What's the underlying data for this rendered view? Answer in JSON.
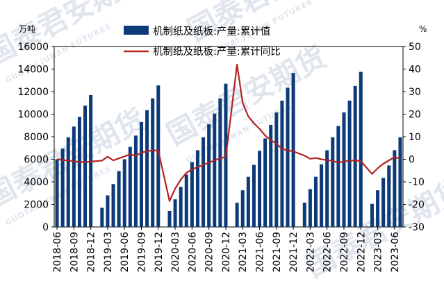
{
  "chart_data": {
    "type": "bar+line",
    "left_unit": "万吨",
    "right_unit": "%",
    "left_ylim": [
      0,
      16000
    ],
    "left_ticks": [
      "0",
      "2000",
      "4000",
      "6000",
      "8000",
      "10000",
      "12000",
      "14000",
      "16000"
    ],
    "right_ylim": [
      -30,
      50
    ],
    "right_ticks": [
      "-30",
      "-20",
      "-10",
      "0",
      "10",
      "20",
      "30",
      "40",
      "50"
    ],
    "x_tick_labels": [
      "2018-06",
      "2018-09",
      "2018-12",
      "2019-03",
      "2019-06",
      "2019-09",
      "2019-12",
      "2020-03",
      "2020-06",
      "2020-09",
      "2020-12",
      "2021-03",
      "2021-06",
      "2021-09",
      "2021-12",
      "2022-03",
      "2022-06",
      "2022-09",
      "2022-12",
      "2023-03",
      "2023-06"
    ],
    "x": [
      "2018-06",
      "2018-07",
      "2018-08",
      "2018-09",
      "2018-10",
      "2018-11",
      "2018-12",
      "2019-01",
      "2019-02",
      "2019-03",
      "2019-04",
      "2019-05",
      "2019-06",
      "2019-07",
      "2019-08",
      "2019-09",
      "2019-10",
      "2019-11",
      "2019-12",
      "2020-01",
      "2020-02",
      "2020-03",
      "2020-04",
      "2020-05",
      "2020-06",
      "2020-07",
      "2020-08",
      "2020-09",
      "2020-10",
      "2020-11",
      "2020-12",
      "2021-01",
      "2021-02",
      "2021-03",
      "2021-04",
      "2021-05",
      "2021-06",
      "2021-07",
      "2021-08",
      "2021-09",
      "2021-10",
      "2021-11",
      "2021-12",
      "2022-01",
      "2022-02",
      "2022-03",
      "2022-04",
      "2022-05",
      "2022-06",
      "2022-07",
      "2022-08",
      "2022-09",
      "2022-10",
      "2022-11",
      "2022-12",
      "2023-01",
      "2023-02",
      "2023-03",
      "2023-04",
      "2023-05",
      "2023-06",
      "2023-07"
    ],
    "series": [
      {
        "name": "机制纸及纸板:产量:累计值",
        "type": "bar",
        "axis": "left",
        "color": "#0d3a78",
        "values": [
          6000,
          6950,
          7950,
          8900,
          9750,
          10750,
          11700,
          null,
          1700,
          2800,
          3800,
          4950,
          6000,
          7100,
          8100,
          9300,
          10350,
          11400,
          12550,
          null,
          1420,
          2450,
          3550,
          4650,
          5750,
          6800,
          7950,
          9100,
          10050,
          11400,
          12700,
          null,
          2150,
          3250,
          4450,
          5500,
          6750,
          7850,
          9050,
          10150,
          11200,
          12350,
          13650,
          null,
          2150,
          3350,
          4450,
          5550,
          6800,
          7950,
          8950,
          10150,
          11200,
          12500,
          13750,
          null,
          2050,
          3250,
          4350,
          5450,
          6800,
          7950
        ]
      },
      {
        "name": "机制纸及纸板:产量:累计同比",
        "type": "line",
        "axis": "right",
        "color": "#b22222",
        "values": [
          0,
          -0.3,
          -0.6,
          -0.9,
          -1.2,
          -1.3,
          -1.0,
          -0.8,
          -0.6,
          1.2,
          -0.5,
          0.4,
          1.3,
          2.2,
          1.5,
          3.0,
          3.5,
          4.0,
          3.8,
          null,
          -18.5,
          -13,
          -9,
          -6,
          -4.5,
          -3.5,
          -2.5,
          -1.5,
          -0.5,
          0.5,
          1.0,
          null,
          42,
          25,
          19,
          16,
          13.5,
          10.5,
          8.5,
          7,
          4.5,
          4.0,
          3.5,
          null,
          1.6,
          0.2,
          0.6,
          0.0,
          -0.4,
          -0.7,
          -1.5,
          -1.0,
          -0.6,
          -0.5,
          -0.8,
          null,
          -6.5,
          -4.0,
          -2.0,
          -0.5,
          1.0,
          0.2
        ]
      }
    ]
  },
  "legend": {
    "bar_label": "机制纸及纸板:产量:累计值",
    "line_label": "机制纸及纸板:产量:累计同比"
  },
  "watermark": {
    "text": "国泰君安期货",
    "subtext": "GUOTAI JUNAN FUTURES"
  }
}
